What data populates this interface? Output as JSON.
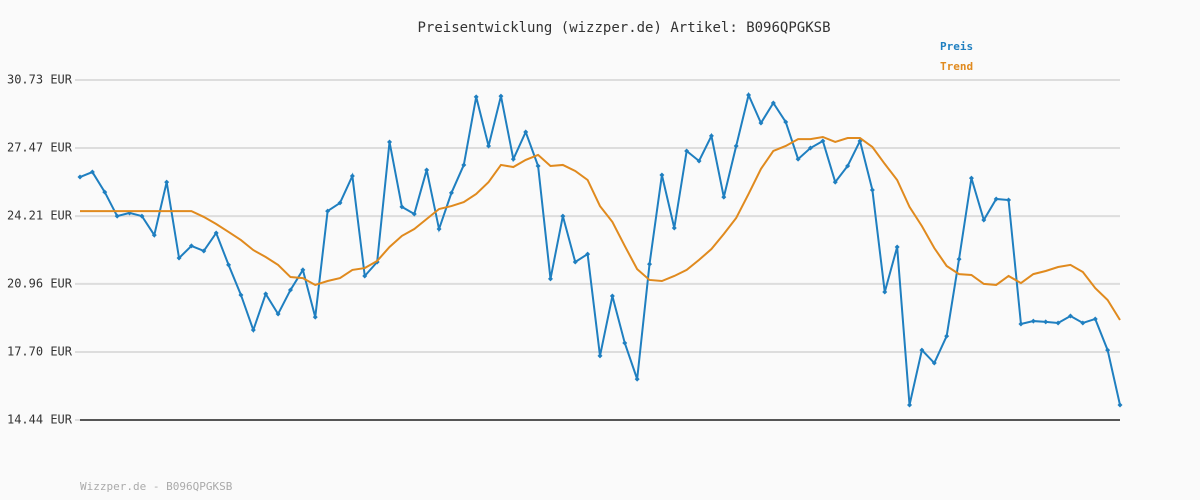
{
  "chart_data": {
    "type": "line",
    "title": "Preisentwicklung (wizzper.de) Artikel: B096QPGKSB",
    "footer": "Wizzper.de - B096QPGKSB",
    "ylim": [
      14.44,
      30.73
    ],
    "yticks": [
      {
        "value": 14.44,
        "label": "14.44 EUR"
      },
      {
        "value": 17.7,
        "label": "17.70 EUR"
      },
      {
        "value": 20.96,
        "label": "20.96 EUR"
      },
      {
        "value": 24.21,
        "label": "24.21 EUR"
      },
      {
        "value": 27.47,
        "label": "27.47 EUR"
      },
      {
        "value": 30.73,
        "label": "30.73 EUR"
      }
    ],
    "grid": true,
    "legend": "top-right",
    "series": [
      {
        "name": "Preis",
        "color": "#1f7fc0",
        "markers": true,
        "values": [
          26.08,
          26.32,
          25.36,
          24.21,
          24.36,
          24.21,
          23.3,
          25.84,
          22.2,
          22.78,
          22.54,
          23.4,
          21.87,
          20.43,
          18.75,
          20.48,
          19.52,
          20.67,
          21.63,
          19.37,
          24.45,
          24.84,
          26.13,
          21.34,
          22.01,
          27.76,
          24.65,
          24.31,
          26.42,
          23.59,
          25.32,
          26.66,
          29.92,
          27.57,
          29.96,
          26.94,
          28.24,
          26.61,
          21.2,
          24.21,
          22.01,
          22.39,
          17.51,
          20.38,
          18.13,
          16.4,
          21.91,
          26.18,
          23.64,
          27.33,
          26.85,
          28.05,
          25.12,
          27.57,
          30.01,
          28.67,
          29.63,
          28.72,
          26.94,
          27.47,
          27.81,
          25.84,
          26.61,
          27.81,
          25.46,
          20.57,
          22.73,
          15.16,
          17.79,
          17.17,
          18.46,
          22.15,
          26.03,
          24.02,
          25.03,
          24.98,
          19.04,
          19.18,
          19.14,
          19.09,
          19.42,
          19.09,
          19.28,
          17.79,
          15.16
        ]
      },
      {
        "name": "Trend",
        "color": "#e08a1e",
        "markers": false,
        "values": [
          24.45,
          24.45,
          24.45,
          24.45,
          24.45,
          24.45,
          24.45,
          24.45,
          24.45,
          24.45,
          24.17,
          23.83,
          23.45,
          23.06,
          22.58,
          22.25,
          21.87,
          21.29,
          21.24,
          20.91,
          21.1,
          21.24,
          21.63,
          21.72,
          22.06,
          22.73,
          23.26,
          23.59,
          24.07,
          24.55,
          24.69,
          24.88,
          25.27,
          25.84,
          26.66,
          26.56,
          26.9,
          27.14,
          26.61,
          26.66,
          26.37,
          25.94,
          24.69,
          23.93,
          22.78,
          21.67,
          21.15,
          21.1,
          21.34,
          21.63,
          22.11,
          22.63,
          23.35,
          24.12,
          25.27,
          26.47,
          27.33,
          27.57,
          27.9,
          27.9,
          28.0,
          27.76,
          27.95,
          27.95,
          27.52,
          26.71,
          25.94,
          24.65,
          23.73,
          22.68,
          21.82,
          21.43,
          21.39,
          20.96,
          20.91,
          21.34,
          21.0,
          21.43,
          21.58,
          21.77,
          21.87,
          21.53,
          20.76,
          20.19,
          19.23
        ]
      }
    ]
  }
}
